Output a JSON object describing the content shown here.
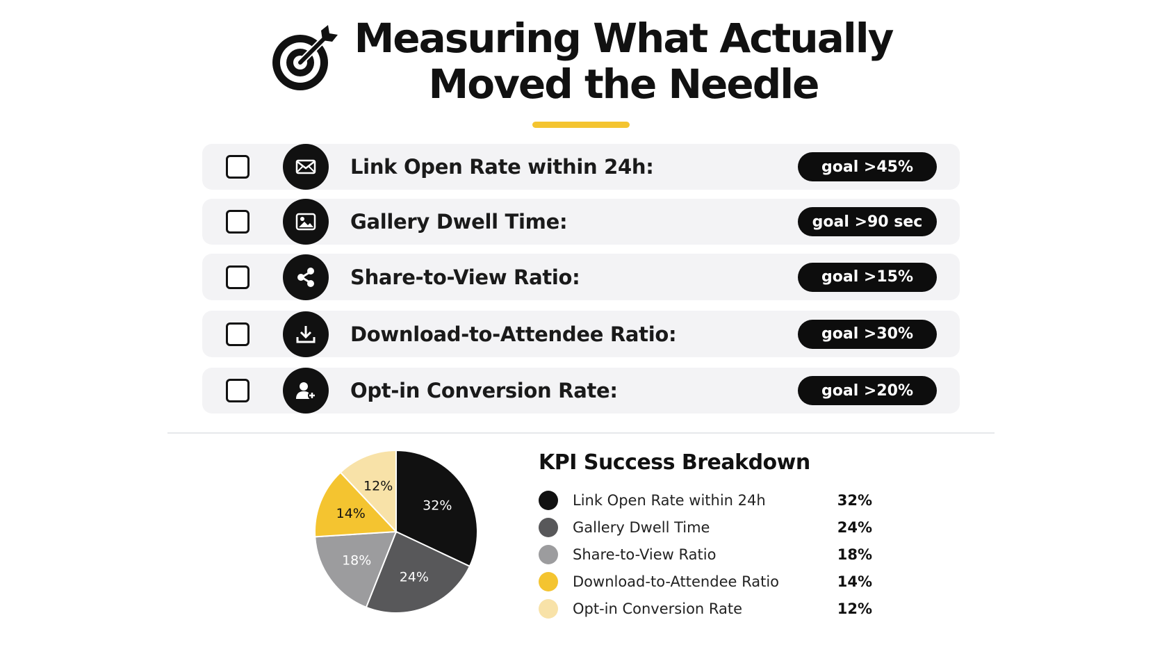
{
  "header": {
    "title_line1": "Measuring What Actually",
    "title_line2": "Moved the Needle",
    "icon": "target-arrow-icon",
    "accent_color": "#F4C430"
  },
  "kpis": [
    {
      "label": "Link Open Rate within 24h:",
      "goal": "goal >45%",
      "icon": "envelope-icon"
    },
    {
      "label": "Gallery Dwell Time:",
      "goal": "goal >90 sec",
      "icon": "image-icon"
    },
    {
      "label": "Share-to-View Ratio:",
      "goal": "goal >15%",
      "icon": "share-icon"
    },
    {
      "label": "Download-to-Attendee Ratio:",
      "goal": "goal >30%",
      "icon": "download-icon"
    },
    {
      "label": "Opt-in Conversion Rate:",
      "goal": "goal >20%",
      "icon": "add-user-icon"
    }
  ],
  "chart_data": {
    "type": "pie",
    "title": "KPI Success Breakdown",
    "categories": [
      "Link Open Rate within 24h",
      "Gallery Dwell Time",
      "Share-to-View Ratio",
      "Download-to-Attendee Ratio",
      "Opt-in Conversion Rate"
    ],
    "values": [
      32,
      24,
      18,
      14,
      12
    ],
    "value_labels": [
      "32%",
      "24%",
      "18%",
      "14%",
      "12%"
    ],
    "colors": [
      "#111111",
      "#58585A",
      "#9C9C9E",
      "#F4C430",
      "#F8E2A8"
    ],
    "label_colors": [
      "#ffffff",
      "#ffffff",
      "#ffffff",
      "#111111",
      "#111111"
    ],
    "legend_position": "right"
  }
}
